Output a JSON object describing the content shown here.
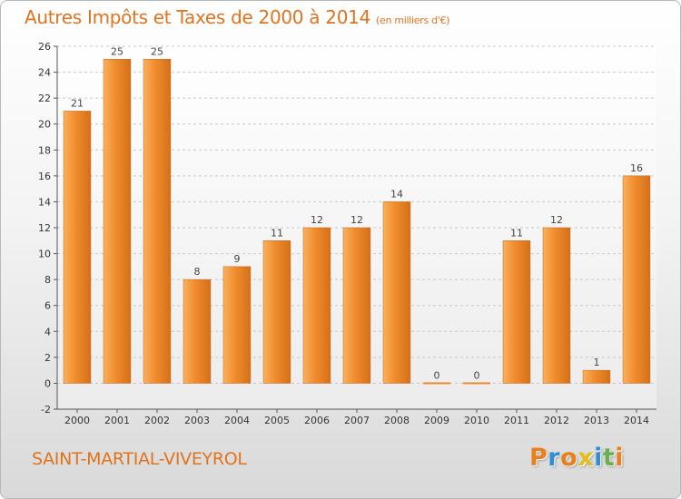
{
  "title": "Autres Impôts et Taxes de 2000 à 2014",
  "title_unit": "(en milliers d'€)",
  "commune": "SAINT-MARTIAL-VIVEYROL",
  "logo": {
    "letters": [
      "P",
      "r",
      "o",
      "x",
      "i",
      "t",
      "i"
    ],
    "colors": [
      "#e8801e",
      "#2f8fd0",
      "#e8801e",
      "#e0c020",
      "#2f8fd0",
      "#6ab04c",
      "#e8801e"
    ]
  },
  "colors": {
    "title": "#e0731e",
    "bar": "#f08a2c",
    "bar_light": "#f9b15d",
    "bar_dark": "#d4701a"
  },
  "chart_data": {
    "type": "bar",
    "title": "Autres Impôts et Taxes de 2000 à 2014",
    "xlabel": "",
    "ylabel": "",
    "ylim": [
      -2,
      26
    ],
    "yticks": [
      -2,
      0,
      2,
      4,
      6,
      8,
      10,
      12,
      14,
      16,
      18,
      20,
      22,
      24,
      26
    ],
    "grid": true,
    "categories": [
      "2000",
      "2001",
      "2002",
      "2003",
      "2004",
      "2005",
      "2006",
      "2007",
      "2008",
      "2009",
      "2010",
      "2011",
      "2012",
      "2013",
      "2014"
    ],
    "values": [
      21,
      25,
      25,
      8,
      9,
      11,
      12,
      12,
      14,
      0,
      0,
      11,
      12,
      1,
      16
    ]
  }
}
